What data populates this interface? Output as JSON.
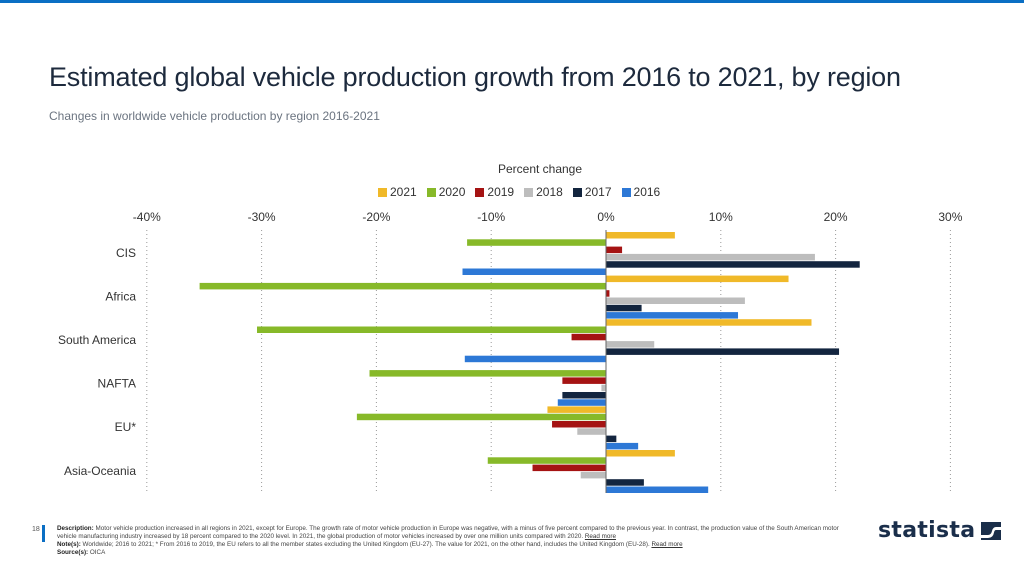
{
  "header": {
    "title": "Estimated global vehicle production growth from 2016 to 2021, by region",
    "subtitle": "Changes in worldwide vehicle production by region 2016-2021"
  },
  "chart_data": {
    "type": "bar",
    "orientation": "horizontal",
    "title": "Estimated global vehicle production growth from 2016 to 2021, by region",
    "xlabel": "Percent change",
    "ylabel": "",
    "xlim": [
      -40,
      30
    ],
    "x_ticks": [
      "-40%",
      "-30%",
      "-20%",
      "-10%",
      "0%",
      "10%",
      "20%",
      "30%"
    ],
    "x_tick_values": [
      -40,
      -30,
      -20,
      -10,
      0,
      10,
      20,
      30
    ],
    "grid": true,
    "legend_position": "top",
    "categories": [
      "CIS",
      "Africa",
      "South America",
      "NAFTA",
      "EU*",
      "Asia-Oceania"
    ],
    "series": [
      {
        "name": "2021",
        "color": "#f0b929",
        "values": [
          6.0,
          15.9,
          17.9,
          0.0,
          -5.1,
          6.0
        ]
      },
      {
        "name": "2020",
        "color": "#87b929",
        "values": [
          -12.1,
          -35.4,
          -30.4,
          -20.6,
          -21.7,
          -10.3
        ]
      },
      {
        "name": "2019",
        "color": "#a51313",
        "values": [
          1.4,
          0.3,
          -3.0,
          -3.8,
          -4.7,
          -6.4
        ]
      },
      {
        "name": "2018",
        "color": "#bdbdbd",
        "values": [
          18.2,
          12.1,
          4.2,
          -0.4,
          -2.5,
          -2.2
        ]
      },
      {
        "name": "2017",
        "color": "#13253f",
        "values": [
          22.1,
          3.1,
          20.3,
          -3.8,
          0.9,
          3.3
        ]
      },
      {
        "name": "2016",
        "color": "#2d78d6",
        "values": [
          -12.5,
          11.5,
          -12.3,
          -4.2,
          2.8,
          8.9
        ]
      }
    ]
  },
  "footer": {
    "page_number": "18",
    "description_label": "Description:",
    "description_text": "Motor vehicle production increased in all regions in 2021, except for Europe. The growth rate of motor vehicle production in Europe was negative, with a minus of five percent compared to the previous year. In contrast, the production value of the South American motor vehicle manufacturing industry increased by 18 percent compared to the 2020 level. In 2021, the global production of motor vehicles increased by over one million units compared with 2020.",
    "read_more_1": "Read more",
    "notes_label": "Note(s):",
    "notes_text": "Worldwide; 2016 to 2021; * From 2016 to 2019, the EU refers to all the member states excluding the United Kingdom (EU-27). The value for 2021, on the other hand, includes the United Kingdom (EU-28).",
    "read_more_2": "Read more",
    "source_label": "Source(s):",
    "source_text": "OICA"
  },
  "brand": {
    "logo_text": "statista"
  }
}
